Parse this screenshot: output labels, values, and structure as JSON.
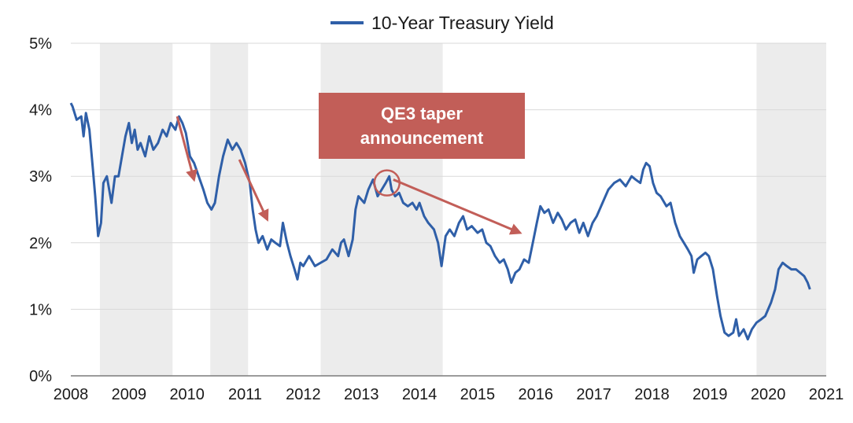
{
  "chart_data": {
    "type": "line",
    "title": "",
    "xlabel": "",
    "ylabel": "",
    "legend": "top-center",
    "x_range": [
      2008,
      2021
    ],
    "ylim": [
      0,
      5
    ],
    "x_ticks": [
      "2008",
      "2009",
      "2010",
      "2011",
      "2012",
      "2013",
      "2014",
      "2015",
      "2016",
      "2017",
      "2018",
      "2019",
      "2020",
      "2021"
    ],
    "y_ticks": [
      "0%",
      "1%",
      "2%",
      "3%",
      "4%",
      "5%"
    ],
    "grid": "horizontal",
    "shaded_periods": [
      [
        2008.5,
        2009.75
      ],
      [
        2010.4,
        2011.05
      ],
      [
        2012.3,
        2014.4
      ],
      [
        2019.8,
        2021.0
      ]
    ],
    "series": [
      {
        "name": "10-Year Treasury Yield",
        "color": "#2f5fa8",
        "points": [
          [
            2008.0,
            4.1
          ],
          [
            2008.03,
            4.05
          ],
          [
            2008.1,
            3.85
          ],
          [
            2008.18,
            3.9
          ],
          [
            2008.22,
            3.6
          ],
          [
            2008.26,
            3.95
          ],
          [
            2008.32,
            3.7
          ],
          [
            2008.38,
            3.1
          ],
          [
            2008.42,
            2.7
          ],
          [
            2008.47,
            2.1
          ],
          [
            2008.52,
            2.3
          ],
          [
            2008.56,
            2.9
          ],
          [
            2008.62,
            3.0
          ],
          [
            2008.7,
            2.6
          ],
          [
            2008.76,
            3.0
          ],
          [
            2008.82,
            3.0
          ],
          [
            2008.88,
            3.3
          ],
          [
            2008.94,
            3.6
          ],
          [
            2009.0,
            3.8
          ],
          [
            2009.05,
            3.5
          ],
          [
            2009.1,
            3.7
          ],
          [
            2009.15,
            3.4
          ],
          [
            2009.2,
            3.5
          ],
          [
            2009.28,
            3.3
          ],
          [
            2009.35,
            3.6
          ],
          [
            2009.42,
            3.4
          ],
          [
            2009.5,
            3.5
          ],
          [
            2009.58,
            3.7
          ],
          [
            2009.65,
            3.6
          ],
          [
            2009.72,
            3.8
          ],
          [
            2009.8,
            3.7
          ],
          [
            2009.86,
            3.9
          ],
          [
            2009.92,
            3.8
          ],
          [
            2009.98,
            3.65
          ],
          [
            2010.05,
            3.3
          ],
          [
            2010.12,
            3.2
          ],
          [
            2010.2,
            3.0
          ],
          [
            2010.28,
            2.8
          ],
          [
            2010.35,
            2.6
          ],
          [
            2010.42,
            2.5
          ],
          [
            2010.48,
            2.6
          ],
          [
            2010.55,
            3.0
          ],
          [
            2010.62,
            3.3
          ],
          [
            2010.7,
            3.55
          ],
          [
            2010.78,
            3.4
          ],
          [
            2010.85,
            3.5
          ],
          [
            2010.92,
            3.4
          ],
          [
            2011.0,
            3.2
          ],
          [
            2011.08,
            2.9
          ],
          [
            2011.13,
            2.5
          ],
          [
            2011.18,
            2.2
          ],
          [
            2011.23,
            2.0
          ],
          [
            2011.3,
            2.1
          ],
          [
            2011.38,
            1.9
          ],
          [
            2011.45,
            2.05
          ],
          [
            2011.52,
            2.0
          ],
          [
            2011.6,
            1.95
          ],
          [
            2011.65,
            2.3
          ],
          [
            2011.72,
            2.0
          ],
          [
            2011.78,
            1.8
          ],
          [
            2011.85,
            1.6
          ],
          [
            2011.9,
            1.45
          ],
          [
            2011.95,
            1.7
          ],
          [
            2012.0,
            1.65
          ],
          [
            2012.1,
            1.8
          ],
          [
            2012.2,
            1.65
          ],
          [
            2012.3,
            1.7
          ],
          [
            2012.4,
            1.75
          ],
          [
            2012.5,
            1.9
          ],
          [
            2012.6,
            1.8
          ],
          [
            2012.65,
            2.0
          ],
          [
            2012.7,
            2.05
          ],
          [
            2012.78,
            1.8
          ],
          [
            2012.85,
            2.05
          ],
          [
            2012.9,
            2.5
          ],
          [
            2012.95,
            2.7
          ],
          [
            2013.05,
            2.6
          ],
          [
            2013.12,
            2.8
          ],
          [
            2013.2,
            2.95
          ],
          [
            2013.28,
            2.7
          ],
          [
            2013.35,
            2.8
          ],
          [
            2013.42,
            2.9
          ],
          [
            2013.48,
            3.0
          ],
          [
            2013.52,
            2.8
          ],
          [
            2013.58,
            2.7
          ],
          [
            2013.65,
            2.75
          ],
          [
            2013.72,
            2.6
          ],
          [
            2013.8,
            2.55
          ],
          [
            2013.88,
            2.6
          ],
          [
            2013.95,
            2.5
          ],
          [
            2014.0,
            2.6
          ],
          [
            2014.08,
            2.4
          ],
          [
            2014.15,
            2.3
          ],
          [
            2014.25,
            2.2
          ],
          [
            2014.32,
            2.0
          ],
          [
            2014.38,
            1.65
          ],
          [
            2014.45,
            2.1
          ],
          [
            2014.52,
            2.2
          ],
          [
            2014.6,
            2.1
          ],
          [
            2014.68,
            2.3
          ],
          [
            2014.75,
            2.4
          ],
          [
            2014.82,
            2.2
          ],
          [
            2014.9,
            2.25
          ],
          [
            2015.0,
            2.15
          ],
          [
            2015.08,
            2.2
          ],
          [
            2015.15,
            2.0
          ],
          [
            2015.22,
            1.95
          ],
          [
            2015.3,
            1.8
          ],
          [
            2015.38,
            1.7
          ],
          [
            2015.45,
            1.75
          ],
          [
            2015.52,
            1.6
          ],
          [
            2015.58,
            1.4
          ],
          [
            2015.65,
            1.55
          ],
          [
            2015.72,
            1.6
          ],
          [
            2015.8,
            1.75
          ],
          [
            2015.88,
            1.7
          ],
          [
            2015.95,
            2.0
          ],
          [
            2016.02,
            2.3
          ],
          [
            2016.08,
            2.55
          ],
          [
            2016.15,
            2.45
          ],
          [
            2016.22,
            2.5
          ],
          [
            2016.3,
            2.3
          ],
          [
            2016.38,
            2.45
          ],
          [
            2016.45,
            2.35
          ],
          [
            2016.52,
            2.2
          ],
          [
            2016.6,
            2.3
          ],
          [
            2016.68,
            2.35
          ],
          [
            2016.75,
            2.15
          ],
          [
            2016.82,
            2.3
          ],
          [
            2016.9,
            2.1
          ],
          [
            2016.98,
            2.3
          ],
          [
            2017.05,
            2.4
          ],
          [
            2017.15,
            2.6
          ],
          [
            2017.25,
            2.8
          ],
          [
            2017.35,
            2.9
          ],
          [
            2017.45,
            2.95
          ],
          [
            2017.55,
            2.85
          ],
          [
            2017.65,
            3.0
          ],
          [
            2017.72,
            2.95
          ],
          [
            2017.8,
            2.9
          ],
          [
            2017.85,
            3.1
          ],
          [
            2017.9,
            3.2
          ],
          [
            2017.96,
            3.15
          ],
          [
            2018.02,
            2.9
          ],
          [
            2018.08,
            2.75
          ],
          [
            2018.15,
            2.7
          ],
          [
            2018.25,
            2.55
          ],
          [
            2018.32,
            2.6
          ],
          [
            2018.4,
            2.3
          ],
          [
            2018.48,
            2.1
          ],
          [
            2018.55,
            2.0
          ],
          [
            2018.62,
            1.9
          ],
          [
            2018.68,
            1.8
          ],
          [
            2018.72,
            1.55
          ],
          [
            2018.78,
            1.75
          ],
          [
            2018.85,
            1.8
          ],
          [
            2018.92,
            1.85
          ],
          [
            2018.98,
            1.8
          ],
          [
            2019.05,
            1.6
          ],
          [
            2019.12,
            1.2
          ],
          [
            2019.18,
            0.9
          ],
          [
            2019.25,
            0.65
          ],
          [
            2019.32,
            0.6
          ],
          [
            2019.4,
            0.65
          ],
          [
            2019.45,
            0.85
          ],
          [
            2019.5,
            0.6
          ],
          [
            2019.58,
            0.7
          ],
          [
            2019.65,
            0.55
          ],
          [
            2019.72,
            0.7
          ],
          [
            2019.8,
            0.8
          ],
          [
            2019.88,
            0.85
          ],
          [
            2019.95,
            0.9
          ],
          [
            2020.05,
            1.1
          ],
          [
            2020.12,
            1.3
          ],
          [
            2020.18,
            1.6
          ],
          [
            2020.25,
            1.7
          ],
          [
            2020.32,
            1.65
          ],
          [
            2020.4,
            1.6
          ],
          [
            2020.48,
            1.6
          ],
          [
            2020.55,
            1.55
          ],
          [
            2020.62,
            1.5
          ],
          [
            2020.68,
            1.4
          ],
          [
            2020.72,
            1.3
          ]
        ]
      }
    ],
    "annotations": [
      {
        "type": "box",
        "text": "QE3 taper\nannouncement",
        "color": "#c25e58"
      },
      {
        "type": "arrow",
        "from": [
          2009.83,
          3.9
        ],
        "to": [
          2010.12,
          2.95
        ],
        "color": "#c25e58"
      },
      {
        "type": "arrow",
        "from": [
          2010.9,
          3.25
        ],
        "to": [
          2011.38,
          2.35
        ],
        "color": "#c25e58"
      },
      {
        "type": "arrow",
        "from": [
          2013.55,
          2.95
        ],
        "to": [
          2015.73,
          2.15
        ],
        "color": "#c25e58"
      },
      {
        "type": "circle",
        "center": [
          2013.44,
          2.9
        ],
        "color": "#c25e58"
      }
    ]
  }
}
